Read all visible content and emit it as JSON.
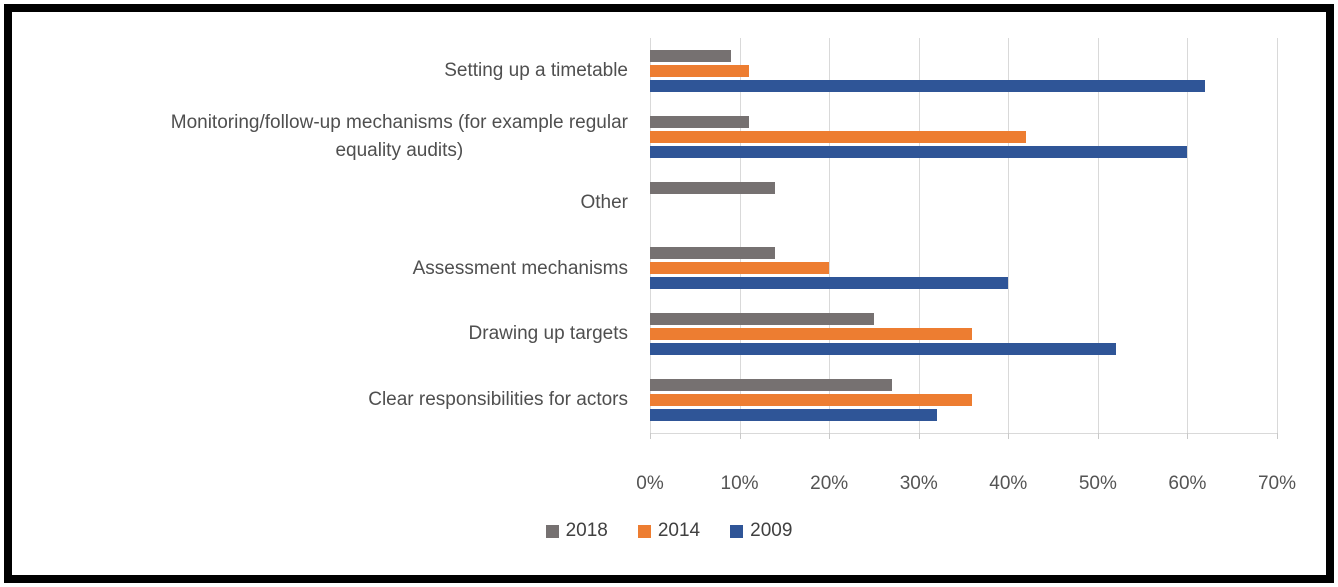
{
  "frame": {
    "border_color": "#000000",
    "background": "#ffffff"
  },
  "chart_data": {
    "type": "bar",
    "orientation": "horizontal",
    "title": "",
    "xlabel": "",
    "ylabel": "",
    "xlim": [
      0,
      70
    ],
    "x_ticks": [
      "0%",
      "10%",
      "20%",
      "30%",
      "40%",
      "50%",
      "60%",
      "70%"
    ],
    "grid": true,
    "gridline_color": "#d9d9d9",
    "axis_color": "#d9d9d9",
    "categories": [
      "Setting up a timetable",
      "Monitoring/follow-up mechanisms (for example regular\nequality audits)",
      "Other",
      "Assessment mechanisms",
      "Drawing up targets",
      "Clear responsibilities for actors"
    ],
    "series": [
      {
        "name": "2018",
        "color": "#767171",
        "values": [
          9,
          11,
          14,
          14,
          25,
          27
        ]
      },
      {
        "name": "2014",
        "color": "#ED7D31",
        "values": [
          11,
          42,
          0,
          20,
          36,
          36
        ]
      },
      {
        "name": "2009",
        "color": "#2F5597",
        "values": [
          62,
          60,
          0,
          40,
          52,
          32
        ]
      }
    ],
    "legend_position": "bottom",
    "legend_order": [
      "2018",
      "2014",
      "2009"
    ]
  }
}
